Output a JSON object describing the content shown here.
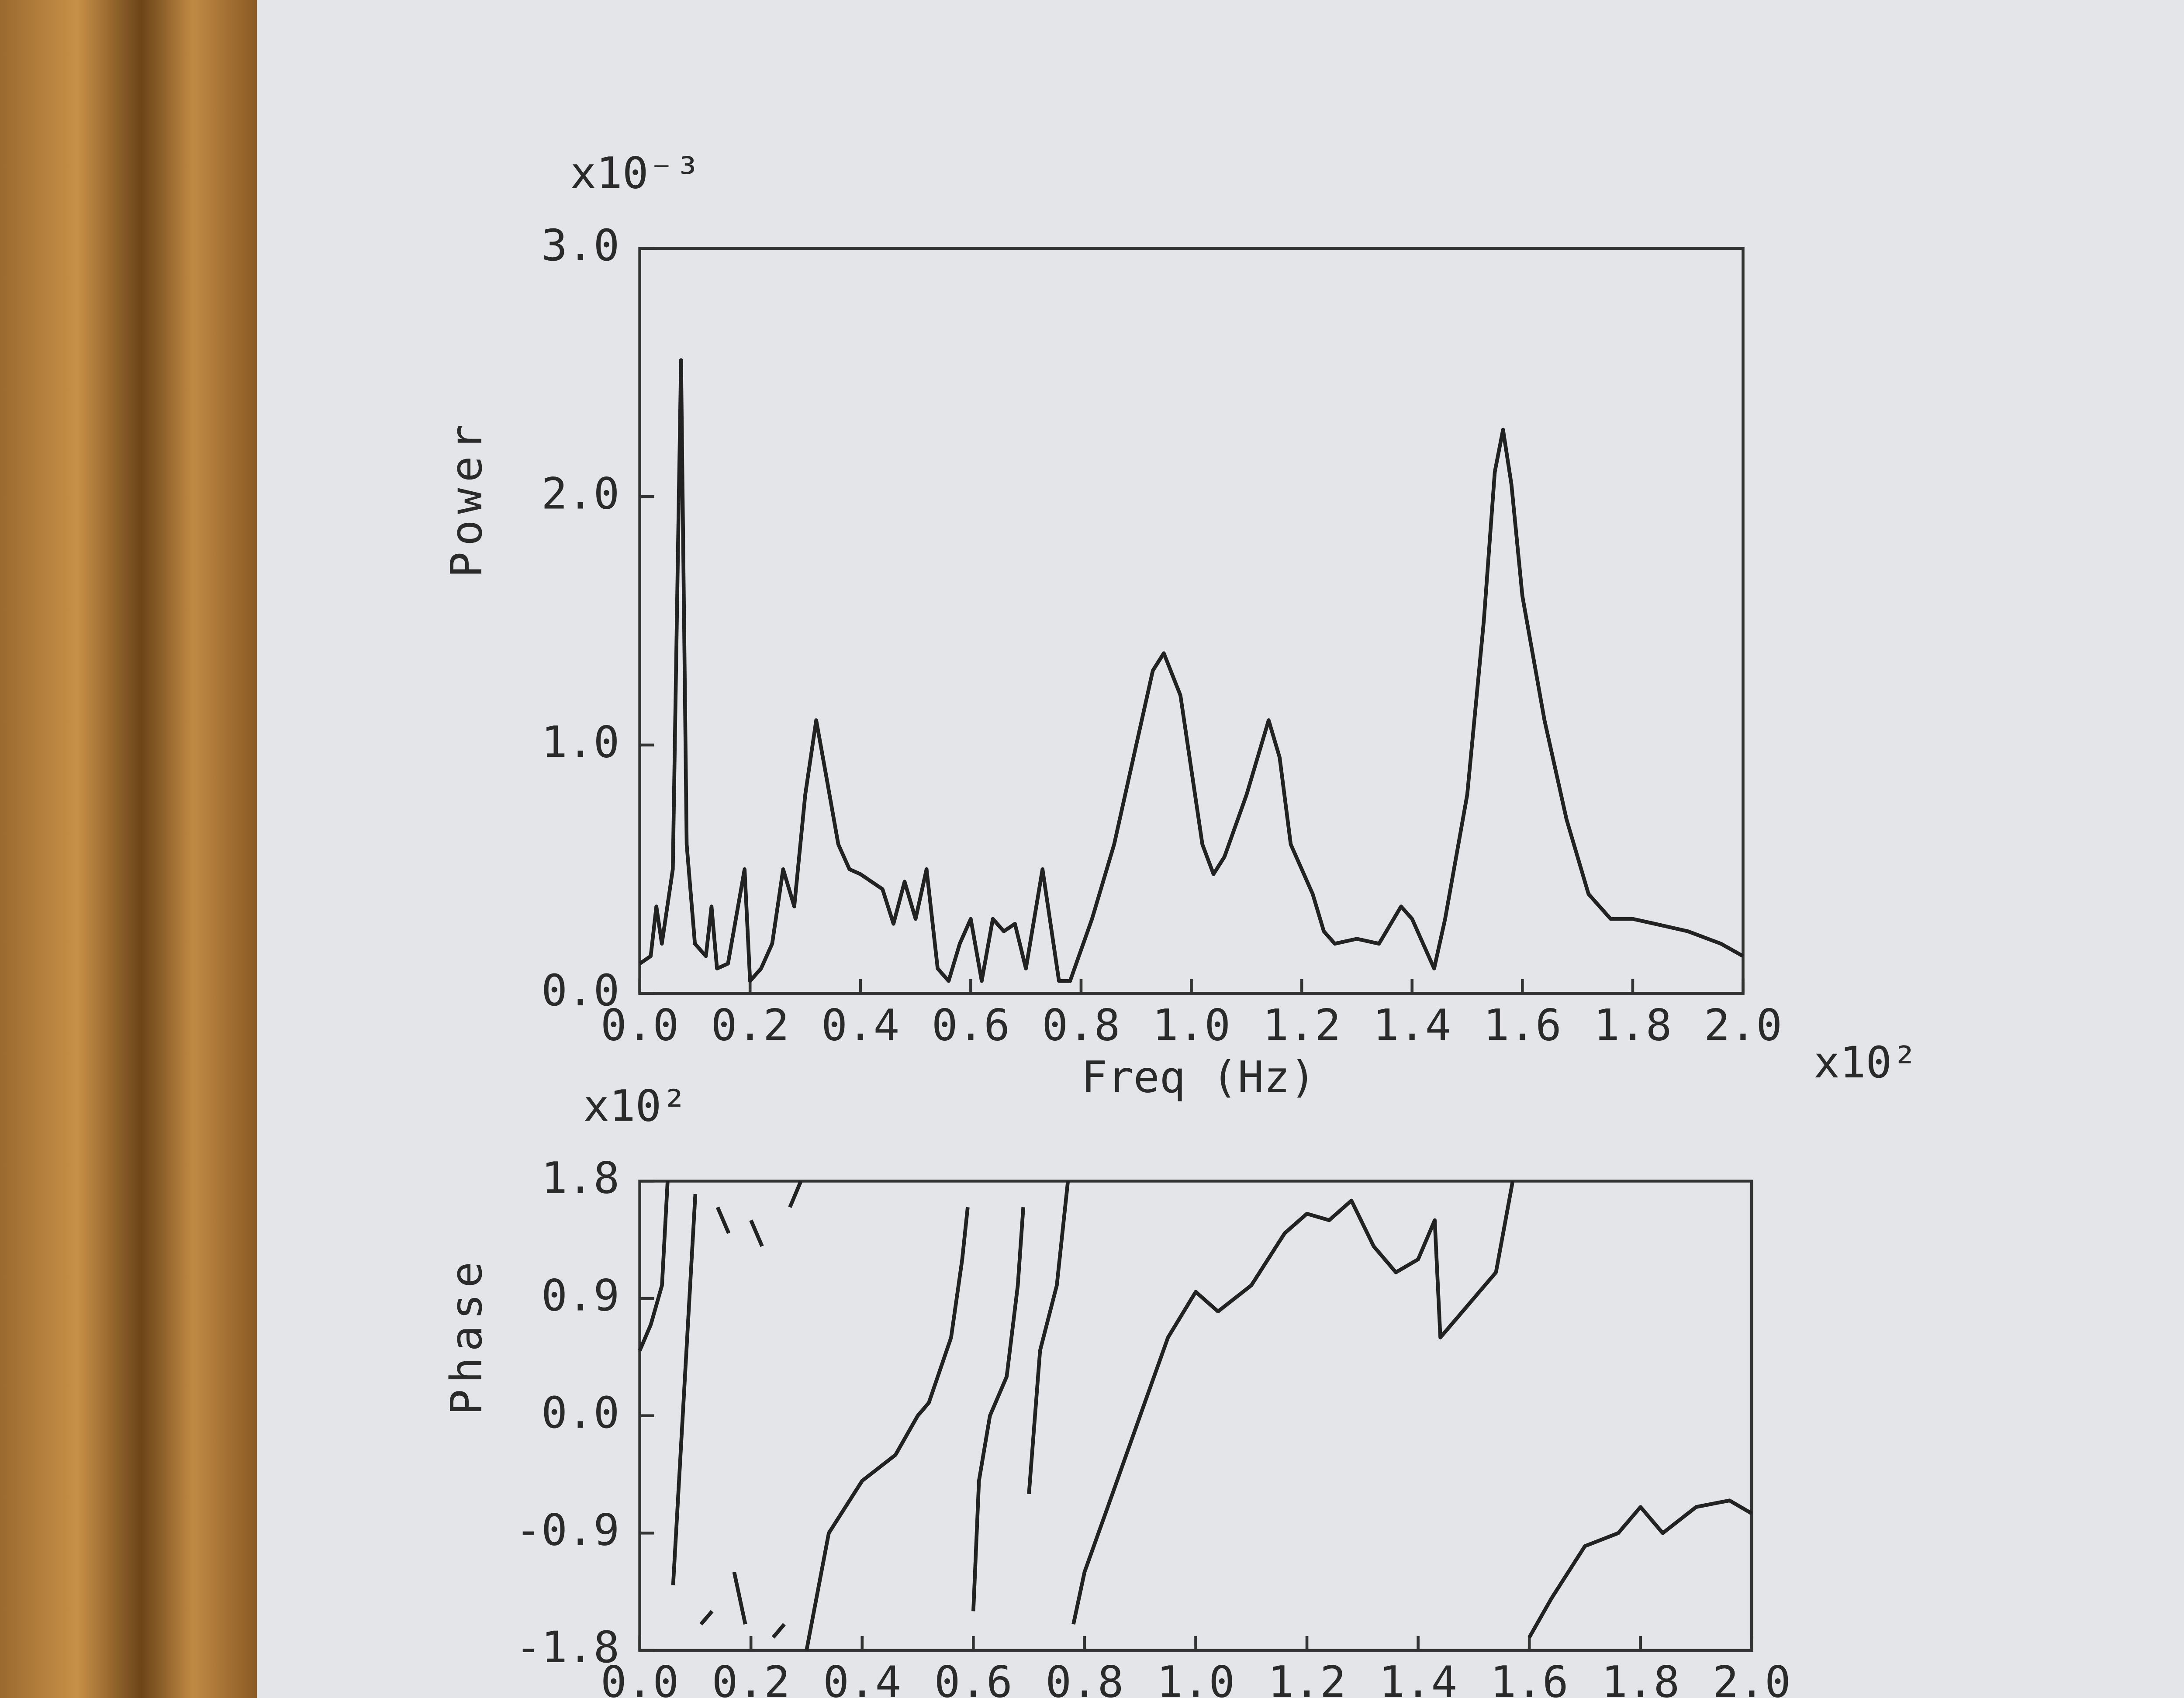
{
  "chart_data": [
    {
      "type": "line",
      "y_label": "Power",
      "x_label": "Freq (Hz)",
      "y_multiplier": "x10⁻³",
      "x_multiplier": "x10²",
      "color": "#222222",
      "xlim": [
        0,
        2
      ],
      "ylim": [
        0,
        3
      ],
      "xticks": [
        {
          "value": 0,
          "label": "0.0"
        },
        0.2,
        0.4,
        0.6,
        0.8,
        {
          "value": 1,
          "label": "1.0"
        },
        1.2,
        1.4,
        1.6,
        1.8,
        {
          "value": 2,
          "label": "2.0"
        }
      ],
      "yticks": [
        {
          "value": 0,
          "label": "0.0"
        },
        {
          "value": 1,
          "label": "1.0"
        },
        {
          "value": 2,
          "label": "2.0"
        },
        {
          "value": 3,
          "label": "3.0"
        }
      ],
      "x": [
        0,
        0.02,
        0.03,
        0.04,
        0.06,
        0.075,
        0.085,
        0.1,
        0.12,
        0.13,
        0.14,
        0.16,
        0.19,
        0.2,
        0.22,
        0.24,
        0.26,
        0.28,
        0.3,
        0.32,
        0.34,
        0.36,
        0.38,
        0.4,
        0.44,
        0.46,
        0.48,
        0.5,
        0.52,
        0.54,
        0.56,
        0.58,
        0.6,
        0.62,
        0.64,
        0.66,
        0.68,
        0.7,
        0.73,
        0.76,
        0.78,
        0.82,
        0.86,
        0.9,
        0.93,
        0.95,
        0.98,
        1.0,
        1.02,
        1.04,
        1.06,
        1.1,
        1.14,
        1.16,
        1.18,
        1.22,
        1.24,
        1.26,
        1.3,
        1.34,
        1.38,
        1.4,
        1.44,
        1.46,
        1.5,
        1.53,
        1.55,
        1.565,
        1.58,
        1.6,
        1.64,
        1.68,
        1.72,
        1.76,
        1.8,
        1.84,
        1.9,
        1.96,
        2.0
      ],
      "values": [
        0.12,
        0.15,
        0.35,
        0.2,
        0.5,
        2.55,
        0.6,
        0.2,
        0.15,
        0.35,
        0.1,
        0.12,
        0.5,
        0.05,
        0.1,
        0.2,
        0.5,
        0.35,
        0.8,
        1.1,
        0.85,
        0.6,
        0.5,
        0.48,
        0.42,
        0.28,
        0.45,
        0.3,
        0.5,
        0.1,
        0.05,
        0.2,
        0.3,
        0.05,
        0.3,
        0.25,
        0.28,
        0.1,
        0.5,
        0.05,
        0.05,
        0.3,
        0.6,
        1.0,
        1.3,
        1.37,
        1.2,
        0.9,
        0.6,
        0.48,
        0.55,
        0.8,
        1.1,
        0.95,
        0.6,
        0.4,
        0.25,
        0.2,
        0.22,
        0.2,
        0.35,
        0.3,
        0.1,
        0.3,
        0.8,
        1.5,
        2.1,
        2.27,
        2.05,
        1.6,
        1.1,
        0.7,
        0.4,
        0.3,
        0.3,
        0.28,
        0.25,
        0.2,
        0.15
      ]
    },
    {
      "type": "line",
      "y_label": "Phase",
      "y_multiplier": "x10²",
      "color": "#222222",
      "xlim": [
        0,
        2
      ],
      "ylim": [
        -1.8,
        1.8
      ],
      "xticks": [
        {
          "value": 0,
          "label": "0.0"
        },
        0.2,
        0.4,
        0.6,
        0.8,
        {
          "value": 1,
          "label": "1.0"
        },
        1.2,
        1.4,
        1.6,
        1.8,
        {
          "value": 2,
          "label": "2.0"
        }
      ],
      "yticks": [
        -1.8,
        -0.9,
        {
          "value": 0,
          "label": "0.0"
        },
        0.9,
        1.8
      ],
      "x": [
        0,
        0.02,
        0.04,
        0.05,
        null,
        0.06,
        0.08,
        0.1,
        null,
        0.11,
        0.13,
        null,
        0.14,
        0.16,
        null,
        0.17,
        0.19,
        null,
        0.2,
        0.22,
        null,
        0.24,
        0.26,
        null,
        0.27,
        0.29,
        null,
        0.3,
        0.34,
        0.4,
        0.46,
        0.5,
        0.52,
        0.56,
        0.58,
        0.59,
        null,
        0.6,
        0.61,
        0.63,
        0.66,
        0.68,
        0.69,
        null,
        0.7,
        0.72,
        0.75,
        0.77,
        null,
        0.78,
        0.8,
        0.85,
        0.9,
        0.95,
        1.0,
        1.04,
        1.1,
        1.16,
        1.2,
        1.24,
        1.28,
        1.32,
        1.36,
        1.4,
        1.43,
        1.44,
        1.48,
        1.54,
        1.57,
        null,
        1.6,
        1.64,
        1.7,
        1.76,
        1.8,
        1.84,
        1.9,
        1.96,
        2.0
      ],
      "values": [
        0.5,
        0.7,
        1.0,
        1.8,
        null,
        -1.3,
        0.2,
        1.7,
        null,
        -1.6,
        -1.5,
        null,
        1.6,
        1.4,
        null,
        -1.2,
        -1.6,
        null,
        1.5,
        1.3,
        null,
        -1.7,
        -1.6,
        null,
        1.6,
        1.8,
        null,
        -1.8,
        -0.9,
        -0.5,
        -0.3,
        0.0,
        0.1,
        0.6,
        1.2,
        1.6,
        null,
        -1.5,
        -0.5,
        0.0,
        0.3,
        1.0,
        1.6,
        null,
        -0.6,
        0.5,
        1.0,
        1.8,
        null,
        -1.6,
        -1.2,
        -0.6,
        0.0,
        0.6,
        0.95,
        0.8,
        1.0,
        1.4,
        1.55,
        1.5,
        1.65,
        1.3,
        1.1,
        1.2,
        1.5,
        0.6,
        0.8,
        1.1,
        1.8,
        null,
        -1.7,
        -1.4,
        -1.0,
        -0.9,
        -0.7,
        -0.9,
        -0.7,
        -0.65,
        -0.75
      ]
    }
  ]
}
